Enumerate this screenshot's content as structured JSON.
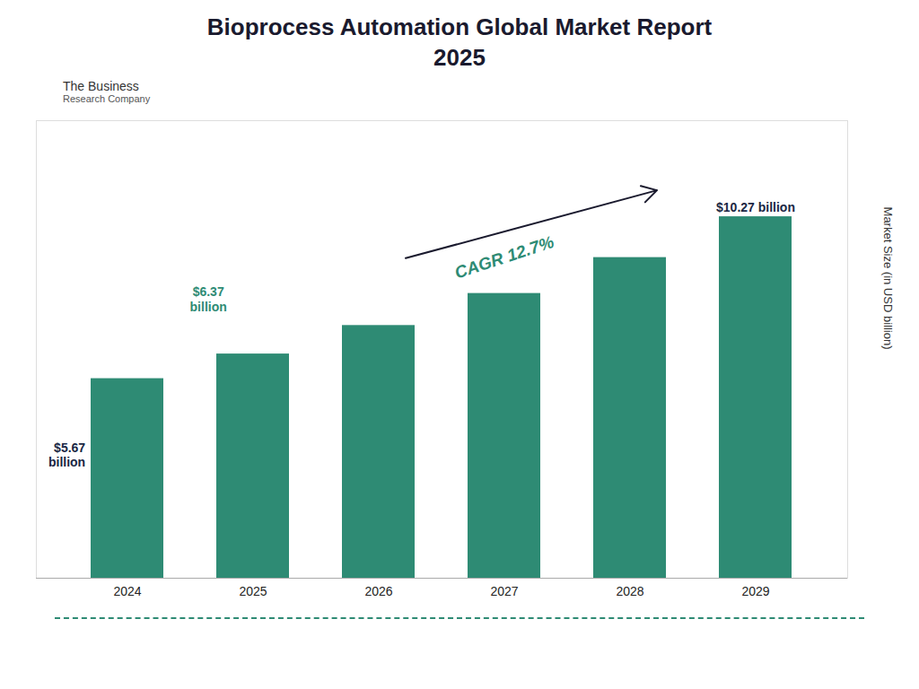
{
  "chart_data": {
    "type": "bar",
    "title": "Bioprocess Automation Global Market Report\n2025",
    "categories": [
      "2024",
      "2025",
      "2026",
      "2027",
      "2028",
      "2029"
    ],
    "values": [
      5.67,
      6.37,
      7.18,
      8.09,
      9.11,
      10.27
    ],
    "color": "#2e8b74",
    "ylabel": "Market Size (in USD billion)",
    "ylim": [
      0,
      13
    ],
    "tick_labels": "x",
    "grid": false,
    "annotations": [
      {
        "text": "$5.67\nbillion",
        "category": "2024",
        "color": "#1a2744"
      },
      {
        "text": "$6.37\nbillion",
        "category": "2025",
        "color": "#2e8b74"
      },
      {
        "text": "$10.27 billion",
        "category": "2029",
        "color": "#1a2744"
      },
      {
        "text": "CAGR 12.7%",
        "category": "2027",
        "color": "#2e8b74",
        "arrow_color": "#1a1a2e"
      }
    ],
    "logo": [
      "The Business",
      "Research Company"
    ],
    "title_color": "#1a1a2e",
    "background_color": "#ffffff",
    "border_color": "#2e8b74"
  }
}
